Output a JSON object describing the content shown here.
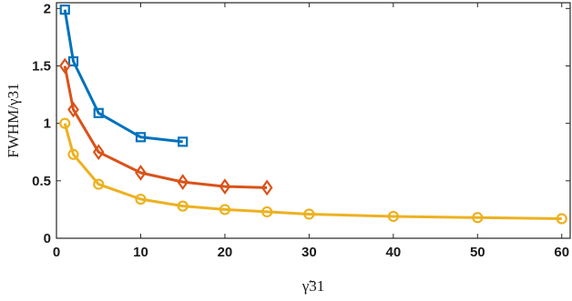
{
  "chart_data": {
    "type": "line",
    "xlabel": "γ̃31",
    "ylabel": "FWHM/γ31",
    "xlim": [
      0,
      61
    ],
    "ylim": [
      0,
      2.05
    ],
    "xticks": [
      0,
      10,
      20,
      30,
      40,
      50,
      60
    ],
    "yticks": [
      0,
      0.5,
      1,
      1.5,
      2
    ],
    "xtick_labels": [
      "0",
      "10",
      "20",
      "30",
      "40",
      "50",
      "60"
    ],
    "ytick_labels": [
      "0",
      "0.5",
      "1",
      "1.5",
      "2"
    ],
    "grid": false,
    "series": [
      {
        "color": "#0072BD",
        "marker": "square",
        "x": [
          1,
          2,
          5,
          10,
          15
        ],
        "y": [
          1.99,
          1.54,
          1.09,
          0.88,
          0.84
        ]
      },
      {
        "color": "#D95319",
        "marker": "diamond",
        "x": [
          1,
          2,
          5,
          10,
          15,
          20,
          25
        ],
        "y": [
          1.5,
          1.12,
          0.75,
          0.57,
          0.49,
          0.45,
          0.44
        ]
      },
      {
        "color": "#EDB120",
        "marker": "circle",
        "x": [
          1,
          2,
          5,
          10,
          15,
          20,
          25,
          30,
          40,
          50,
          60
        ],
        "y": [
          1.0,
          0.73,
          0.47,
          0.34,
          0.28,
          0.25,
          0.23,
          0.21,
          0.19,
          0.18,
          0.17
        ]
      }
    ]
  }
}
